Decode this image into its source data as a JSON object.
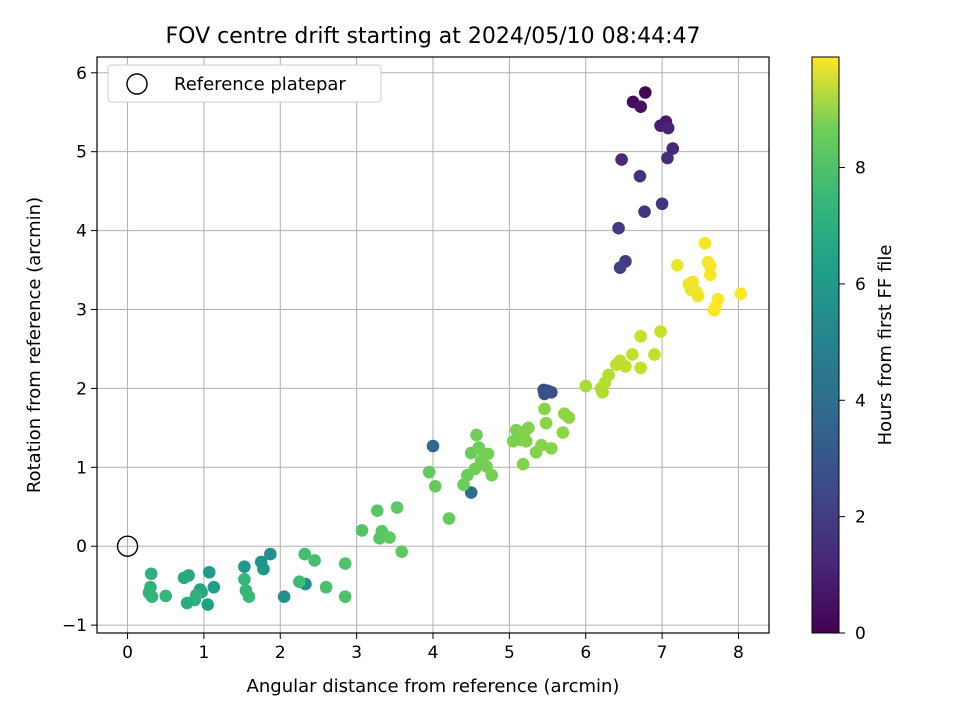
{
  "chart_data": {
    "type": "scatter",
    "title": "FOV centre drift starting at 2024/05/10 08:44:47",
    "xlabel": "Angular distance from reference (arcmin)",
    "ylabel": "Rotation from reference (arcmin)",
    "xlim": [
      -0.4,
      8.4
    ],
    "ylim": [
      -1.1,
      6.2
    ],
    "xticks": [
      "0",
      "1",
      "2",
      "3",
      "4",
      "5",
      "6",
      "7",
      "8"
    ],
    "yticks": [
      "−1",
      "0",
      "1",
      "2",
      "3",
      "4",
      "5",
      "6"
    ],
    "grid": true,
    "legend": {
      "position": "top-left",
      "entries": [
        "Reference platepar"
      ]
    },
    "reference_point": {
      "x": 0,
      "y": 0
    },
    "colorbar": {
      "label": "Hours from first FF file",
      "range": [
        0,
        9.9
      ],
      "ticks": [
        "0",
        "2",
        "4",
        "6",
        "8"
      ],
      "colormap": "viridis"
    },
    "points": [
      [
        6.78,
        5.75,
        0.1
      ],
      [
        6.62,
        5.63,
        0.3
      ],
      [
        6.72,
        5.57,
        0.5
      ],
      [
        7.05,
        5.38,
        0.7
      ],
      [
        6.98,
        5.33,
        0.8
      ],
      [
        7.08,
        5.3,
        1.0
      ],
      [
        7.14,
        5.04,
        1.1
      ],
      [
        6.47,
        4.9,
        1.2
      ],
      [
        7.07,
        4.92,
        1.3
      ],
      [
        6.71,
        4.69,
        1.4
      ],
      [
        7.0,
        4.34,
        1.5
      ],
      [
        6.77,
        4.24,
        1.6
      ],
      [
        6.43,
        4.03,
        1.7
      ],
      [
        6.52,
        3.61,
        1.8
      ],
      [
        6.45,
        3.53,
        1.9
      ],
      [
        5.45,
        1.98,
        2.2
      ],
      [
        5.5,
        1.97,
        2.3
      ],
      [
        5.55,
        1.95,
        2.4
      ],
      [
        5.46,
        1.93,
        2.5
      ],
      [
        4.0,
        1.27,
        3.3
      ],
      [
        4.5,
        0.68,
        3.5
      ],
      [
        2.33,
        -0.48,
        4.8
      ],
      [
        2.05,
        -0.64,
        4.9
      ],
      [
        1.87,
        -0.1,
        5.0
      ],
      [
        1.75,
        -0.2,
        5.1
      ],
      [
        1.78,
        -0.29,
        5.2
      ],
      [
        1.53,
        -0.26,
        5.3
      ],
      [
        1.07,
        -0.33,
        5.4
      ],
      [
        1.13,
        -0.52,
        5.5
      ],
      [
        1.05,
        -0.74,
        5.6
      ],
      [
        0.95,
        -0.55,
        5.7
      ],
      [
        0.97,
        -0.58,
        5.8
      ],
      [
        0.8,
        -0.37,
        5.9
      ],
      [
        0.74,
        -0.4,
        6.0
      ],
      [
        0.78,
        -0.72,
        6.1
      ],
      [
        0.88,
        -0.68,
        6.2
      ],
      [
        0.9,
        -0.62,
        6.3
      ],
      [
        0.31,
        -0.35,
        6.3
      ],
      [
        0.3,
        -0.52,
        6.4
      ],
      [
        0.28,
        -0.59,
        6.4
      ],
      [
        0.32,
        -0.64,
        6.5
      ],
      [
        0.5,
        -0.63,
        6.5
      ],
      [
        1.53,
        -0.42,
        6.6
      ],
      [
        1.55,
        -0.56,
        6.6
      ],
      [
        1.59,
        -0.64,
        6.7
      ],
      [
        2.25,
        -0.45,
        6.8
      ],
      [
        2.32,
        -0.1,
        6.9
      ],
      [
        2.45,
        -0.18,
        6.9
      ],
      [
        2.6,
        -0.52,
        7.0
      ],
      [
        2.85,
        -0.22,
        7.1
      ],
      [
        2.85,
        -0.64,
        7.1
      ],
      [
        3.07,
        0.2,
        7.2
      ],
      [
        3.27,
        0.45,
        7.3
      ],
      [
        3.3,
        0.1,
        7.3
      ],
      [
        3.33,
        0.19,
        7.3
      ],
      [
        3.43,
        0.11,
        7.4
      ],
      [
        3.53,
        0.49,
        7.4
      ],
      [
        3.59,
        -0.07,
        7.4
      ],
      [
        3.95,
        0.94,
        7.5
      ],
      [
        4.03,
        0.76,
        7.5
      ],
      [
        4.21,
        0.35,
        7.5
      ],
      [
        4.4,
        0.78,
        7.6
      ],
      [
        4.45,
        0.9,
        7.6
      ],
      [
        4.5,
        1.18,
        7.6
      ],
      [
        4.55,
        0.98,
        7.7
      ],
      [
        4.57,
        1.41,
        7.7
      ],
      [
        4.6,
        1.25,
        7.7
      ],
      [
        4.63,
        1.08,
        7.7
      ],
      [
        4.67,
        1.15,
        7.8
      ],
      [
        4.7,
        1.01,
        7.8
      ],
      [
        4.72,
        1.17,
        7.8
      ],
      [
        4.77,
        0.9,
        7.8
      ],
      [
        5.05,
        1.33,
        7.9
      ],
      [
        5.09,
        1.47,
        7.9
      ],
      [
        5.12,
        1.4,
        7.9
      ],
      [
        5.15,
        1.35,
        7.9
      ],
      [
        5.18,
        1.04,
        8.0
      ],
      [
        5.2,
        1.45,
        8.0
      ],
      [
        5.22,
        1.33,
        8.0
      ],
      [
        5.25,
        1.5,
        8.0
      ],
      [
        5.35,
        1.19,
        8.0
      ],
      [
        5.42,
        1.28,
        8.1
      ],
      [
        5.46,
        1.74,
        8.1
      ],
      [
        5.48,
        1.56,
        8.1
      ],
      [
        5.55,
        1.24,
        8.1
      ],
      [
        5.7,
        1.44,
        8.2
      ],
      [
        5.72,
        1.68,
        8.2
      ],
      [
        5.78,
        1.63,
        8.2
      ],
      [
        6.0,
        2.03,
        8.6
      ],
      [
        6.2,
        2.0,
        8.7
      ],
      [
        6.22,
        1.95,
        8.7
      ],
      [
        6.25,
        2.07,
        8.8
      ],
      [
        6.3,
        2.17,
        8.8
      ],
      [
        6.4,
        2.3,
        8.9
      ],
      [
        6.45,
        2.35,
        8.9
      ],
      [
        6.52,
        2.28,
        9.0
      ],
      [
        6.61,
        2.43,
        9.0
      ],
      [
        6.72,
        2.26,
        9.0
      ],
      [
        6.72,
        2.66,
        9.1
      ],
      [
        6.9,
        2.43,
        9.0
      ],
      [
        6.98,
        2.72,
        9.1
      ],
      [
        7.2,
        3.56,
        9.6
      ],
      [
        7.35,
        3.32,
        9.6
      ],
      [
        7.38,
        3.25,
        9.6
      ],
      [
        7.4,
        3.35,
        9.7
      ],
      [
        7.45,
        3.22,
        9.7
      ],
      [
        7.47,
        3.17,
        9.7
      ],
      [
        7.56,
        3.84,
        9.8
      ],
      [
        7.6,
        3.6,
        9.8
      ],
      [
        7.63,
        3.55,
        9.8
      ],
      [
        7.63,
        3.44,
        9.8
      ],
      [
        7.68,
        2.99,
        9.8
      ],
      [
        7.7,
        3.03,
        9.9
      ],
      [
        7.73,
        3.13,
        9.9
      ],
      [
        8.03,
        3.2,
        9.9
      ]
    ]
  }
}
